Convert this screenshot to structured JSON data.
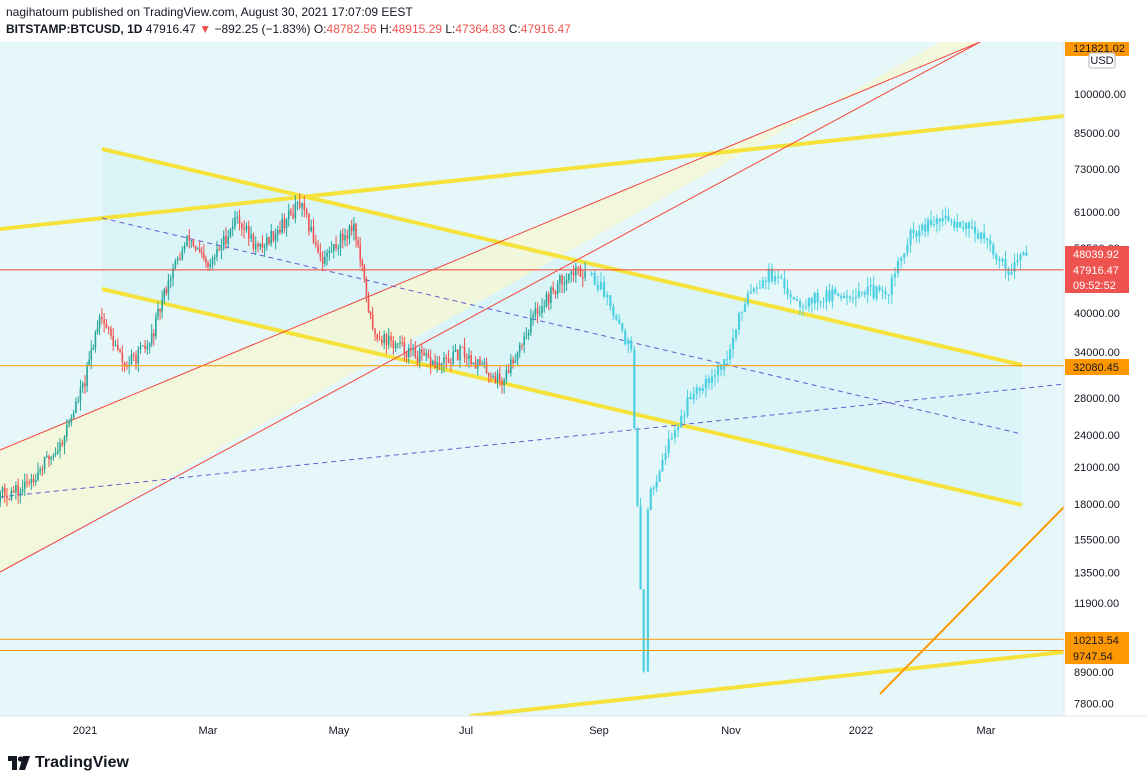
{
  "header": {
    "line1": "nagihatoum published on TradingView.com, August 30, 2021 17:07:09 EEST",
    "symbol": "BITSTAMP:BTCUSD, 1D",
    "last": "47916.47",
    "change_arrow": "▼",
    "change": "−892.25 (−1.83%)",
    "o_label": "O:",
    "o_value": "48782.56",
    "h_label": "H:",
    "h_value": "48915.29",
    "l_label": "L:",
    "l_value": "47364.83",
    "c_label": "C:",
    "c_value": "47916.47"
  },
  "footer": {
    "brand": "TradingView"
  },
  "colors": {
    "candle": "#4dd0e1",
    "candle_old": "#ef5350",
    "candle_old_up": "#26a69a",
    "yellow_line": "#f5e23b",
    "red_line": "#f44336",
    "orange_line": "#ff9800",
    "dashed": "#6a5acd",
    "fill_cyan": "#d8f3f7",
    "fill_yellow": "#f7f8d2",
    "tag_orange": "#ff9800",
    "tag_red": "#ef5350"
  },
  "chart_data": {
    "type": "candlestick",
    "title": "",
    "scale": "log",
    "ylim": [
      7500,
      125000
    ],
    "y_ticks": [
      "100000.00",
      "85000.00",
      "73000.00",
      "61000.00",
      "52500.00",
      "40000.00",
      "34000.00",
      "28000.00",
      "24000.00",
      "21000.00",
      "18000.00",
      "15500.00",
      "13500.00",
      "11900.00",
      "8900.00",
      "7800.00"
    ],
    "x_ticks": [
      "2021",
      "Mar",
      "May",
      "Jul",
      "Sep",
      "Nov",
      "2022",
      "Mar"
    ],
    "currency": "USD",
    "price_tags": [
      {
        "label": "121821.02",
        "kind": "orange"
      },
      {
        "label": "48039.92",
        "kind": "red"
      },
      {
        "label": "47916.47",
        "kind": "red"
      },
      {
        "label": "09:52:52",
        "kind": "red"
      },
      {
        "label": "32080.45",
        "kind": "orange"
      },
      {
        "label": "10213.54",
        "kind": "orange"
      },
      {
        "label": "9747.54",
        "kind": "orange"
      }
    ],
    "horizontal_levels": [
      47916.47,
      32080.45,
      10213.54,
      9747.54
    ],
    "series": [
      {
        "name": "",
        "description": "actual daily price",
        "points": [
          [
            "2020-11",
            18000
          ],
          [
            "2020-12",
            19000
          ],
          [
            "2020-12-20",
            23000
          ],
          [
            "2021-01",
            30000
          ],
          [
            "2021-01-08",
            40000
          ],
          [
            "2021-01-20",
            32000
          ],
          [
            "2021-02",
            35000
          ],
          [
            "2021-02-10",
            46000
          ],
          [
            "2021-02-20",
            55000
          ],
          [
            "2021-03",
            48000
          ],
          [
            "2021-03-15",
            60000
          ],
          [
            "2021-03-25",
            52000
          ],
          [
            "2021-04-14",
            63000
          ],
          [
            "2021-04-25",
            50000
          ],
          [
            "2021-05-10",
            58000
          ],
          [
            "2021-05-19",
            37000
          ],
          [
            "2021-05-30",
            35000
          ],
          [
            "2021-06-20",
            32000
          ],
          [
            "2021-07-01",
            34000
          ],
          [
            "2021-07-20",
            30000
          ],
          [
            "2021-08-05",
            40000
          ],
          [
            "2021-08-20",
            47000
          ],
          [
            "2021-08-30",
            47916
          ]
        ]
      },
      {
        "name": "",
        "description": "projected price path",
        "points": [
          [
            "2021-09-01",
            47000
          ],
          [
            "2021-09-10",
            42000
          ],
          [
            "2021-09-20",
            34000
          ],
          [
            "2021-09-26",
            9000
          ],
          [
            "2021-09-28",
            18000
          ],
          [
            "2021-10-05",
            22000
          ],
          [
            "2021-10-20",
            29000
          ],
          [
            "2021-11-05",
            33000
          ],
          [
            "2021-11-15",
            44000
          ],
          [
            "2021-11-25",
            47000
          ],
          [
            "2021-12-10",
            42000
          ],
          [
            "2022-01-10",
            44000
          ],
          [
            "2022-01-20",
            43000
          ],
          [
            "2022-02-01",
            55000
          ],
          [
            "2022-02-15",
            59000
          ],
          [
            "2022-03-01",
            58000
          ],
          [
            "2022-03-20",
            48000
          ],
          [
            "2022-03-30",
            52000
          ]
        ]
      }
    ]
  }
}
